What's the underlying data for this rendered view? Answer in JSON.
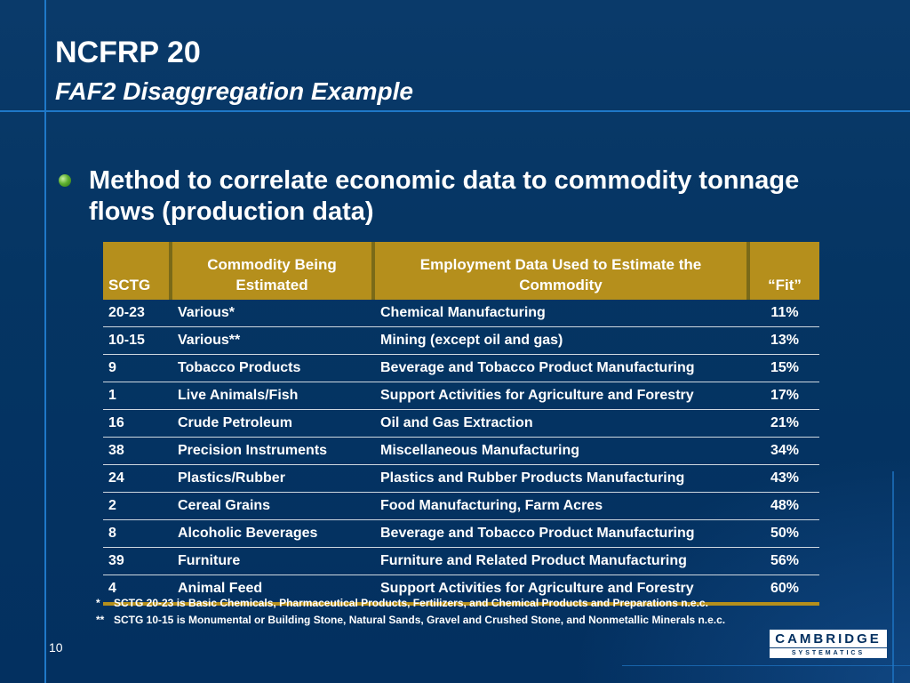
{
  "title": {
    "line1": "NCFRP 20",
    "line2": "FAF2 Disaggregation Example"
  },
  "bullet": {
    "text": "Method to correlate economic data to commodity tonnage flows (production data)"
  },
  "table": {
    "headers": {
      "sctg": "SCTG",
      "commodity": "Commodity Being Estimated",
      "employment": "Employment Data Used to Estimate the Commodity",
      "fit": "“Fit”"
    },
    "rows": [
      {
        "sctg": "20-23",
        "commodity": "Various*",
        "employment": "Chemical Manufacturing",
        "fit": "11%"
      },
      {
        "sctg": "10-15",
        "commodity": "Various**",
        "employment": "Mining (except oil and gas)",
        "fit": "13%"
      },
      {
        "sctg": "9",
        "commodity": "Tobacco Products",
        "employment": "Beverage and Tobacco Product Manufacturing",
        "fit": "15%"
      },
      {
        "sctg": "1",
        "commodity": "Live Animals/Fish",
        "employment": "Support Activities for Agriculture and Forestry",
        "fit": "17%"
      },
      {
        "sctg": "16",
        "commodity": "Crude Petroleum",
        "employment": "Oil and Gas Extraction",
        "fit": "21%"
      },
      {
        "sctg": "38",
        "commodity": "Precision Instruments",
        "employment": "Miscellaneous Manufacturing",
        "fit": "34%"
      },
      {
        "sctg": "24",
        "commodity": "Plastics/Rubber",
        "employment": "Plastics and Rubber Products Manufacturing",
        "fit": "43%"
      },
      {
        "sctg": "2",
        "commodity": "Cereal Grains",
        "employment": "Food Manufacturing, Farm Acres",
        "fit": "48%"
      },
      {
        "sctg": "8",
        "commodity": "Alcoholic Beverages",
        "employment": "Beverage and Tobacco Product Manufacturing",
        "fit": "50%"
      },
      {
        "sctg": "39",
        "commodity": "Furniture",
        "employment": "Furniture and Related Product Manufacturing",
        "fit": "56%"
      },
      {
        "sctg": "4",
        "commodity": "Animal Feed",
        "employment": "Support Activities for Agriculture and Forestry",
        "fit": "60%"
      }
    ]
  },
  "footnotes": [
    {
      "mark": "*",
      "text": "SCTG 20-23 is Basic Chemicals, Pharmaceutical Products, Fertilizers, and Chemical Products and Preparations n.e.c."
    },
    {
      "mark": "**",
      "text": "SCTG 10-15 is Monumental or Building Stone, Natural Sands, Gravel and Crushed Stone, and Nonmetallic Minerals n.e.c."
    }
  ],
  "page_number": "10",
  "logo": {
    "line1": "CAMBRIDGE",
    "line2": "SYSTEMATICS"
  },
  "colors": {
    "background": "#033060",
    "accent_line": "#1f78c8",
    "header_gold": "#b58f1c",
    "bullet_green": "#5fb030"
  }
}
